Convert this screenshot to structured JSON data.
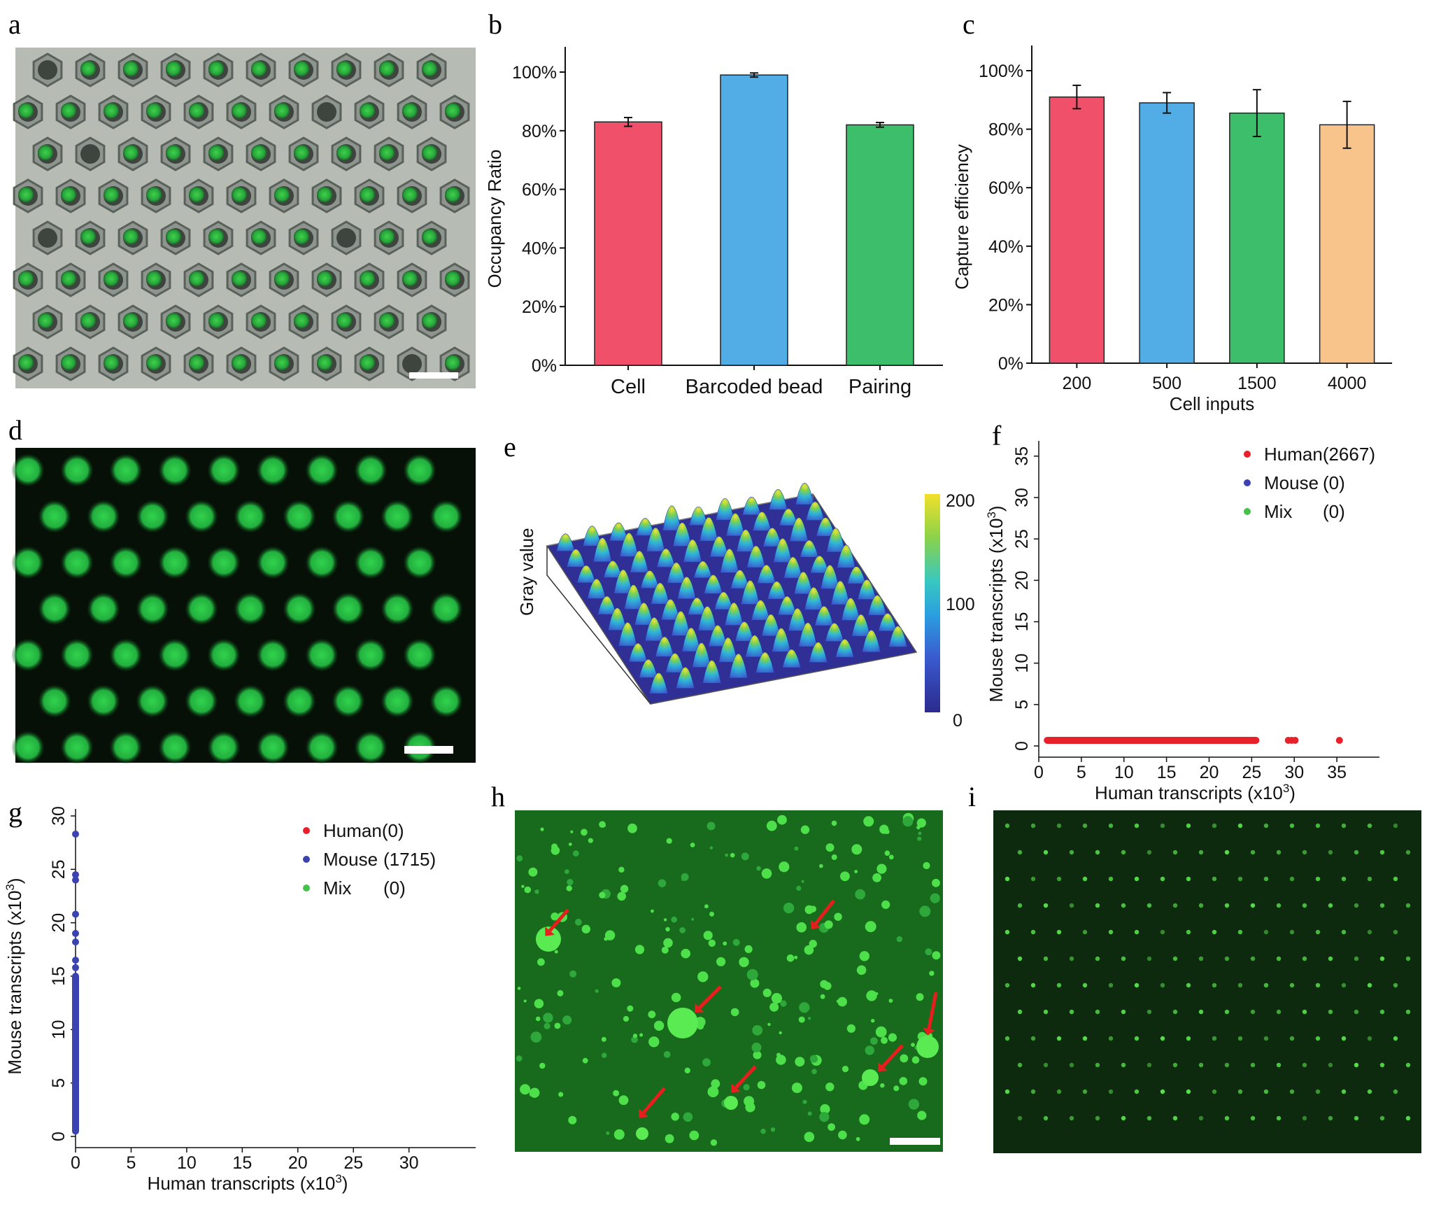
{
  "panels": {
    "a": {
      "label": "a"
    },
    "b": {
      "label": "b"
    },
    "c": {
      "label": "c"
    },
    "d": {
      "label": "d"
    },
    "e": {
      "label": "e"
    },
    "f": {
      "label": "f"
    },
    "g": {
      "label": "g"
    },
    "h": {
      "label": "h"
    },
    "i": {
      "label": "i"
    }
  },
  "colors": {
    "red": "#f0506a",
    "blue": "#52ade6",
    "green": "#3cbe6a",
    "orange": "#f8c48c",
    "human": "#e8202a",
    "mouse": "#3a43b0",
    "mix": "#44c24a",
    "fluor": "#2fd24a"
  },
  "chart_data": [
    {
      "id": "b",
      "type": "bar",
      "categories": [
        "Cell",
        "Barcoded bead",
        "Pairing"
      ],
      "values": [
        83,
        99,
        82
      ],
      "errors": [
        1.5,
        0.7,
        0.8
      ],
      "ylabel": "Occupancy Ratio",
      "ylim": [
        0,
        100
      ],
      "yticks": [
        "0%",
        "20%",
        "40%",
        "60%",
        "80%",
        "100%"
      ],
      "bar_colors": [
        "#f0506a",
        "#52ade6",
        "#3cbe6a"
      ]
    },
    {
      "id": "c",
      "type": "bar",
      "categories": [
        "200",
        "500",
        "1500",
        "4000"
      ],
      "values": [
        91,
        89,
        85.5,
        81.5
      ],
      "errors": [
        4,
        3.5,
        8,
        8
      ],
      "xlabel": "Cell inputs",
      "ylabel": "Capture efficiency",
      "ylim": [
        0,
        100
      ],
      "yticks": [
        "0%",
        "20%",
        "40%",
        "60%",
        "80%",
        "100%"
      ],
      "bar_colors": [
        "#f0506a",
        "#52ade6",
        "#3cbe6a",
        "#f8c48c"
      ]
    },
    {
      "id": "e",
      "type": "heatmap",
      "zlabel": "Gray value",
      "colorbar_ticks": [
        "200",
        "100",
        "0"
      ]
    },
    {
      "id": "f",
      "type": "scatter",
      "xlabel_main": "Human transcripts (x10",
      "xlabel_sup": "3",
      "xlabel_end": ")",
      "ylabel_main": "Mouse transcripts (x10",
      "ylabel_sup": "3",
      "ylabel_end": ")",
      "xlim": [
        0,
        40
      ],
      "ylim": [
        0,
        36
      ],
      "xticks": [
        "0",
        "5",
        "10",
        "15",
        "20",
        "25",
        "30",
        "35"
      ],
      "yticks": [
        "0",
        "5",
        "10",
        "15",
        "20",
        "25",
        "30",
        "35"
      ],
      "legend": [
        {
          "name": "Human(2667)",
          "count": ""
        },
        {
          "name": "Mouse",
          "count": "(0)"
        },
        {
          "name": "Mix",
          "count": "(0)"
        }
      ],
      "human_range": [
        1,
        25.5
      ],
      "human_outliers": [
        29.3,
        29.7,
        30.1,
        35.3
      ]
    },
    {
      "id": "g",
      "type": "scatter",
      "xlabel_main": "Human transcripts (x10",
      "xlabel_sup": "3",
      "xlabel_end": ")",
      "ylabel_main": "Mouse transcripts (x10",
      "ylabel_sup": "3",
      "ylabel_end": ")",
      "xlim": [
        0,
        36
      ],
      "ylim": [
        0,
        30
      ],
      "xticks": [
        "0",
        "5",
        "10",
        "15",
        "20",
        "25",
        "30"
      ],
      "yticks": [
        "0",
        "5",
        "10",
        "15",
        "20",
        "25",
        "30"
      ],
      "legend": [
        {
          "name": "Human(0)",
          "count": ""
        },
        {
          "name": "Mouse",
          "count": "(1715)"
        },
        {
          "name": "Mix",
          "count": "(0)"
        }
      ],
      "mouse_range": [
        0.5,
        15
      ],
      "mouse_outliers": [
        15.8,
        16.5,
        18.2,
        19,
        20.8,
        24,
        24.5,
        28.3
      ]
    }
  ]
}
